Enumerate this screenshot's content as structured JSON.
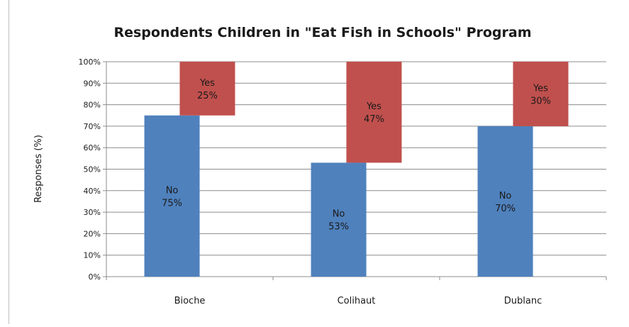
{
  "chart_data": {
    "type": "bar",
    "stacked": true,
    "title": "Respondents Children in \"Eat Fish in Schools\" Program",
    "xlabel": "",
    "ylabel": "Responses (%)",
    "ylim": [
      0,
      100
    ],
    "y_ticks": [
      "0%",
      "10%",
      "20%",
      "30%",
      "40%",
      "50%",
      "60%",
      "70%",
      "80%",
      "90%",
      "100%"
    ],
    "grid": true,
    "legend": "none",
    "categories": [
      "Bioche",
      "Colihaut",
      "Dublanc"
    ],
    "series": [
      {
        "name": "No",
        "color": "#4f81bd",
        "values": [
          75,
          53,
          70
        ],
        "labels": [
          "75%",
          "53%",
          "70%"
        ]
      },
      {
        "name": "Yes",
        "color": "#c0504d",
        "values": [
          25,
          47,
          30
        ],
        "labels": [
          "25%",
          "47%",
          "30%"
        ]
      }
    ]
  }
}
